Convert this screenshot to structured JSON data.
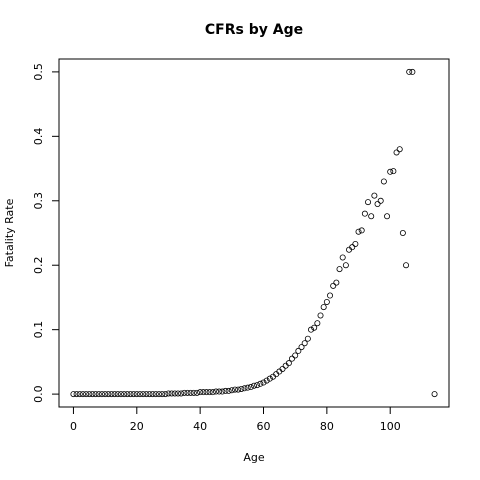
{
  "chart_data": {
    "type": "scatter",
    "title": "CFRs by Age",
    "x_label": "Age",
    "y_label": "Fatality Rate",
    "x": [
      0,
      1,
      2,
      3,
      4,
      5,
      6,
      7,
      8,
      9,
      10,
      11,
      12,
      13,
      14,
      15,
      16,
      17,
      18,
      19,
      20,
      21,
      22,
      23,
      24,
      25,
      26,
      27,
      28,
      29,
      30,
      31,
      32,
      33,
      34,
      35,
      36,
      37,
      38,
      39,
      40,
      41,
      42,
      43,
      44,
      45,
      46,
      47,
      48,
      49,
      50,
      51,
      52,
      53,
      54,
      55,
      56,
      57,
      58,
      59,
      60,
      61,
      62,
      63,
      64,
      65,
      66,
      67,
      68,
      69,
      70,
      71,
      72,
      73,
      74,
      75,
      76,
      77,
      78,
      79,
      80,
      81,
      82,
      83,
      84,
      85,
      86,
      87,
      88,
      89,
      90,
      91,
      92,
      93,
      94,
      95,
      96,
      97,
      98,
      99,
      100,
      101,
      102,
      103,
      104,
      105,
      106,
      107,
      114
    ],
    "values": [
      0,
      0,
      0,
      0,
      0,
      0,
      0,
      0,
      0,
      0,
      0,
      0,
      0,
      0,
      0,
      0,
      0,
      0,
      0,
      0,
      0,
      0,
      0,
      0,
      0,
      0,
      0,
      0,
      0,
      0,
      0.001,
      0.001,
      0.001,
      0.001,
      0.001,
      0.002,
      0.002,
      0.002,
      0.002,
      0.002,
      0.003,
      0.003,
      0.003,
      0.003,
      0.003,
      0.004,
      0.004,
      0.004,
      0.005,
      0.005,
      0.006,
      0.007,
      0.007,
      0.008,
      0.009,
      0.01,
      0.011,
      0.013,
      0.014,
      0.016,
      0.018,
      0.021,
      0.024,
      0.027,
      0.031,
      0.035,
      0.039,
      0.044,
      0.048,
      0.055,
      0.06,
      0.067,
      0.073,
      0.079,
      0.086,
      0.1,
      0.103,
      0.11,
      0.122,
      0.135,
      0.143,
      0.153,
      0.168,
      0.173,
      0.194,
      0.212,
      0.2,
      0.224,
      0.228,
      0.233,
      0.252,
      0.254,
      0.28,
      0.298,
      0.276,
      0.308,
      0.295,
      0.3,
      0.33,
      0.276,
      0.345,
      0.346,
      0.375,
      0.38,
      0.25,
      0.2,
      0.5,
      0.5,
      0
    ],
    "color": "#000000",
    "xlim": [
      -4.56,
      118.56
    ],
    "xticks": [
      0,
      20,
      40,
      60,
      80,
      100
    ],
    "ylim": [
      -0.02,
      0.52
    ],
    "yticks": [
      {
        "value": 0,
        "label": "0.0"
      },
      0.1,
      0.2,
      0.3,
      0.4,
      0.5
    ]
  }
}
